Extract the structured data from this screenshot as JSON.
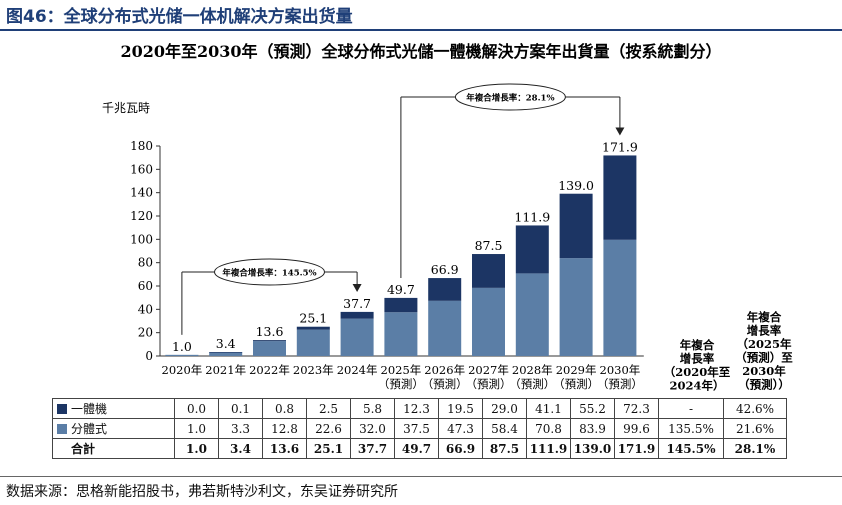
{
  "figure_title": "图46：全球分布式光储一体机解决方案出货量",
  "source": "数据来源：思格新能招股书，弗若斯特沙利文，东吴证券研究所",
  "colors": {
    "integrated": "#1c3564",
    "distributed": "#5b7ea6",
    "title": "#1f3f78"
  },
  "chart_data": {
    "type": "bar",
    "stacked": true,
    "title": "2020年至2030年（預測）全球分佈式光儲一體機解決方案年出貨量（按系統劃分）",
    "ylabel": "千兆瓦時",
    "ylim": [
      0,
      180
    ],
    "yticks": [
      0,
      20,
      40,
      60,
      80,
      100,
      120,
      140,
      160,
      180
    ],
    "categories": [
      [
        "2020年"
      ],
      [
        "2021年"
      ],
      [
        "2022年"
      ],
      [
        "2023年"
      ],
      [
        "2024年"
      ],
      [
        "2025年",
        "（預測）"
      ],
      [
        "2026年",
        "（預測）"
      ],
      [
        "2027年",
        "（預測）"
      ],
      [
        "2028年",
        "（預測）"
      ],
      [
        "2029年",
        "（預測）"
      ],
      [
        "2030年",
        "（預測）"
      ]
    ],
    "series": [
      {
        "name": "分體式",
        "values": [
          1.0,
          3.3,
          12.8,
          22.6,
          32.0,
          37.5,
          47.3,
          58.4,
          70.8,
          83.9,
          99.6
        ]
      },
      {
        "name": "一體機",
        "values": [
          0.0,
          0.1,
          0.8,
          2.5,
          5.8,
          12.3,
          19.5,
          29.0,
          41.1,
          55.2,
          72.3
        ]
      }
    ],
    "totals": [
      1.0,
      3.4,
      13.6,
      25.1,
      37.7,
      49.7,
      66.9,
      87.5,
      111.9,
      139.0,
      171.9
    ],
    "total_labels": [
      "1.0",
      "3.4",
      "13.6",
      "25.1",
      "37.7",
      "49.7",
      "66.9",
      "87.5",
      "111.9",
      "139.0",
      "171.9"
    ],
    "annotations": [
      {
        "text": "年複合增長率：145.5%",
        "from_index": 0,
        "to_index": 4
      },
      {
        "text": "年複合增長率：28.1%",
        "from_index": 5,
        "to_index": 10
      }
    ],
    "cagr_headers": [
      [
        "年複合",
        "增長率",
        "（2020年至",
        "2024年）"
      ],
      [
        "年複合",
        "增長率",
        "（2025年",
        "（預測）至",
        "2030年",
        "（預測））"
      ]
    ]
  },
  "table": {
    "rows": [
      {
        "label": "一體機",
        "swatch": "integrated",
        "values": [
          "0.0",
          "0.1",
          "0.8",
          "2.5",
          "5.8",
          "12.3",
          "19.5",
          "29.0",
          "41.1",
          "55.2",
          "72.3"
        ],
        "cagr1": "-",
        "cagr2": "42.6%"
      },
      {
        "label": "分體式",
        "swatch": "distributed",
        "values": [
          "1.0",
          "3.3",
          "12.8",
          "22.6",
          "32.0",
          "37.5",
          "47.3",
          "58.4",
          "70.8",
          "83.9",
          "99.6"
        ],
        "cagr1": "135.5%",
        "cagr2": "21.6%"
      },
      {
        "label": "合計",
        "swatch": "",
        "values": [
          "1.0",
          "3.4",
          "13.6",
          "25.1",
          "37.7",
          "49.7",
          "66.9",
          "87.5",
          "111.9",
          "139.0",
          "171.9"
        ],
        "cagr1": "145.5%",
        "cagr2": "28.1%"
      }
    ]
  }
}
